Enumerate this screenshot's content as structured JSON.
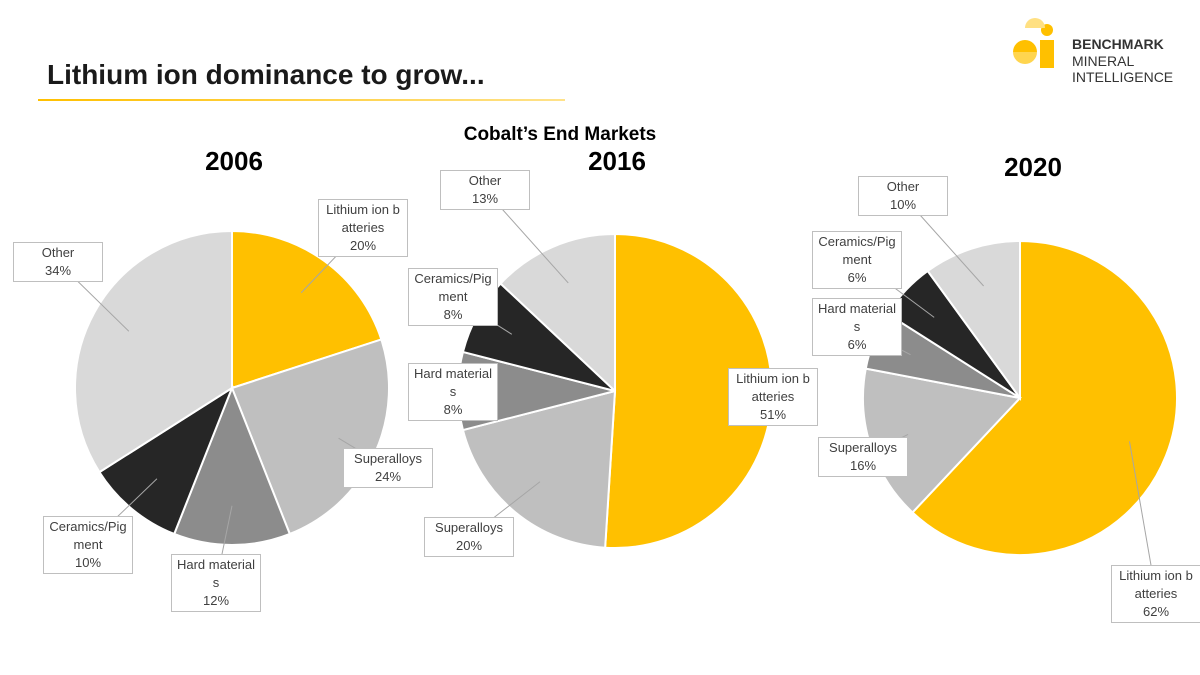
{
  "header": {
    "title": "Lithium ion dominance to grow...",
    "logo": [
      "BENCHMARK",
      "MINERAL",
      "INTELLIGENCE"
    ],
    "heading": "Cobalt’s End Markets"
  },
  "chart_data": [
    {
      "type": "pie",
      "title": "2006",
      "categories": [
        "Lithium ion batteries",
        "Superalloys",
        "Hard materials",
        "Ceramics/Pigment",
        "Other"
      ],
      "values": [
        20,
        24,
        12,
        10,
        34
      ],
      "value_labels": [
        "20%",
        "24%",
        "12%",
        "10%",
        "34%"
      ],
      "colors": [
        "#ffc000",
        "#bfbfbf",
        "#8c8c8c",
        "#262626",
        "#d9d9d9"
      ]
    },
    {
      "type": "pie",
      "title": "2016",
      "categories": [
        "Lithium ion batteries",
        "Superalloys",
        "Hard materials",
        "Ceramics/Pigment",
        "Other"
      ],
      "values": [
        51,
        20,
        8,
        8,
        13
      ],
      "value_labels": [
        "51%",
        "20%",
        "8%",
        "8%",
        "13%"
      ],
      "colors": [
        "#ffc000",
        "#bfbfbf",
        "#8c8c8c",
        "#262626",
        "#d9d9d9"
      ]
    },
    {
      "type": "pie",
      "title": "2020",
      "categories": [
        "Lithium ion batteries",
        "Superalloys",
        "Hard materials",
        "Ceramics/Pigment",
        "Other"
      ],
      "values": [
        62,
        16,
        6,
        6,
        10
      ],
      "value_labels": [
        "62%",
        "16%",
        "6%",
        "6%",
        "10%"
      ],
      "colors": [
        "#ffc000",
        "#bfbfbf",
        "#8c8c8c",
        "#262626",
        "#d9d9d9"
      ]
    }
  ]
}
